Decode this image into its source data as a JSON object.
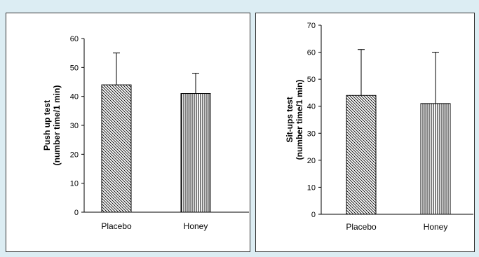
{
  "colors": {
    "background": "#dcedf3",
    "panel": "#ffffff",
    "ink": "#000000"
  },
  "chart_data": [
    {
      "type": "bar",
      "title": "",
      "xlabel": "",
      "ylabel_lines": [
        "Push up test",
        "(number time/1 min)"
      ],
      "categories": [
        "Placebo",
        "Honey"
      ],
      "values": [
        44,
        41
      ],
      "error_plus": [
        11,
        7
      ],
      "bar_patterns": [
        "diagonal-hatch",
        "vertical-hatch"
      ],
      "ylim": [
        0,
        60
      ],
      "yticks": [
        0,
        10,
        20,
        30,
        40,
        50,
        60
      ],
      "grid": false,
      "legend": false
    },
    {
      "type": "bar",
      "title": "",
      "xlabel": "",
      "ylabel_lines": [
        "Sit-ups test",
        "(number time/1 min)"
      ],
      "categories": [
        "Placebo",
        "Honey"
      ],
      "values": [
        44,
        41
      ],
      "error_plus": [
        17,
        19
      ],
      "bar_patterns": [
        "diagonal-hatch",
        "vertical-hatch"
      ],
      "ylim": [
        0,
        70
      ],
      "yticks": [
        0,
        10,
        20,
        30,
        40,
        50,
        60,
        70
      ],
      "grid": false,
      "legend": false
    }
  ]
}
